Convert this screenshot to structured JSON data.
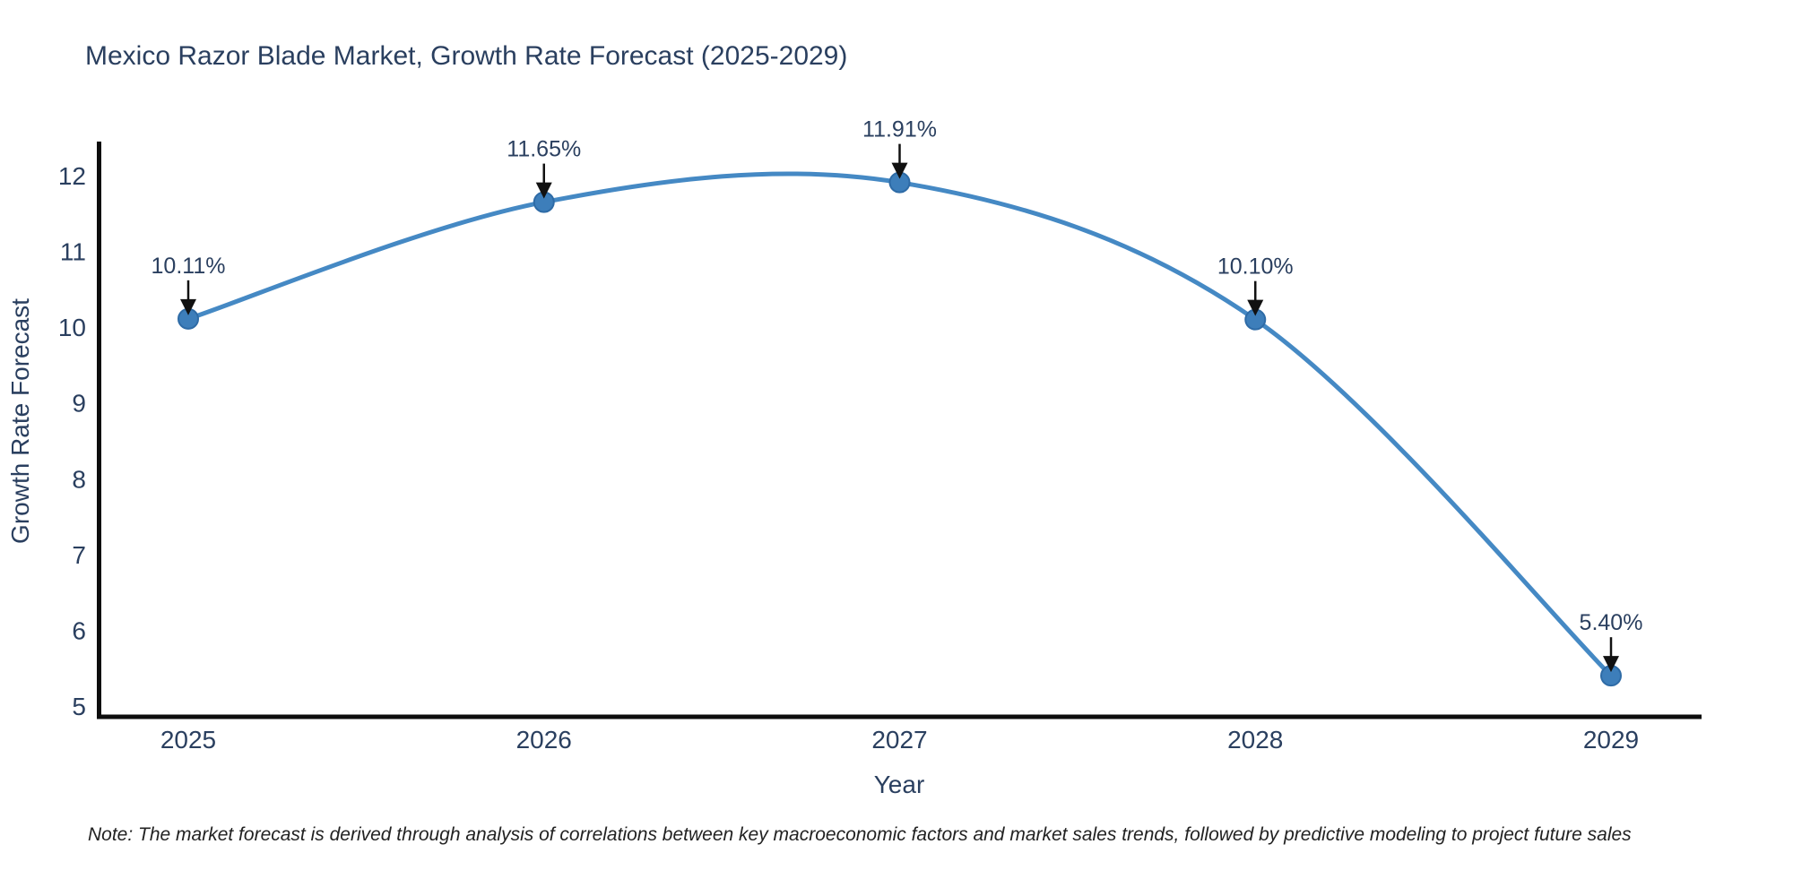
{
  "note": "Note: The market forecast is derived through analysis of correlations between key macroeconomic factors and market sales trends, followed by predictive modeling to project future sales",
  "colors": {
    "line": "#4589c4",
    "marker": "#3d7eba",
    "text": "#2a3f5f",
    "axis": "#0d0d0d",
    "arrow": "#111111",
    "note_text": "#222222",
    "background": "#ffffff"
  },
  "chart_data": {
    "type": "line",
    "title": "Mexico Razor Blade Market, Growth Rate Forecast (2025-2029)",
    "xlabel": "Year",
    "ylabel": "Growth Rate Forecast",
    "categories": [
      "2025",
      "2026",
      "2027",
      "2028",
      "2029"
    ],
    "values": [
      10.11,
      11.65,
      11.91,
      10.1,
      5.4
    ],
    "point_labels": [
      "10.11%",
      "11.65%",
      "11.91%",
      "10.10%",
      "5.40%"
    ],
    "series_name": "Growth Rate Forecast",
    "yticks": [
      5,
      6,
      7,
      8,
      9,
      10,
      11,
      12
    ],
    "ylim": [
      4.85,
      12.45
    ],
    "grid": false,
    "legend": false,
    "line_shape": "spline",
    "annotation_style": "value-label-with-down-arrow"
  }
}
